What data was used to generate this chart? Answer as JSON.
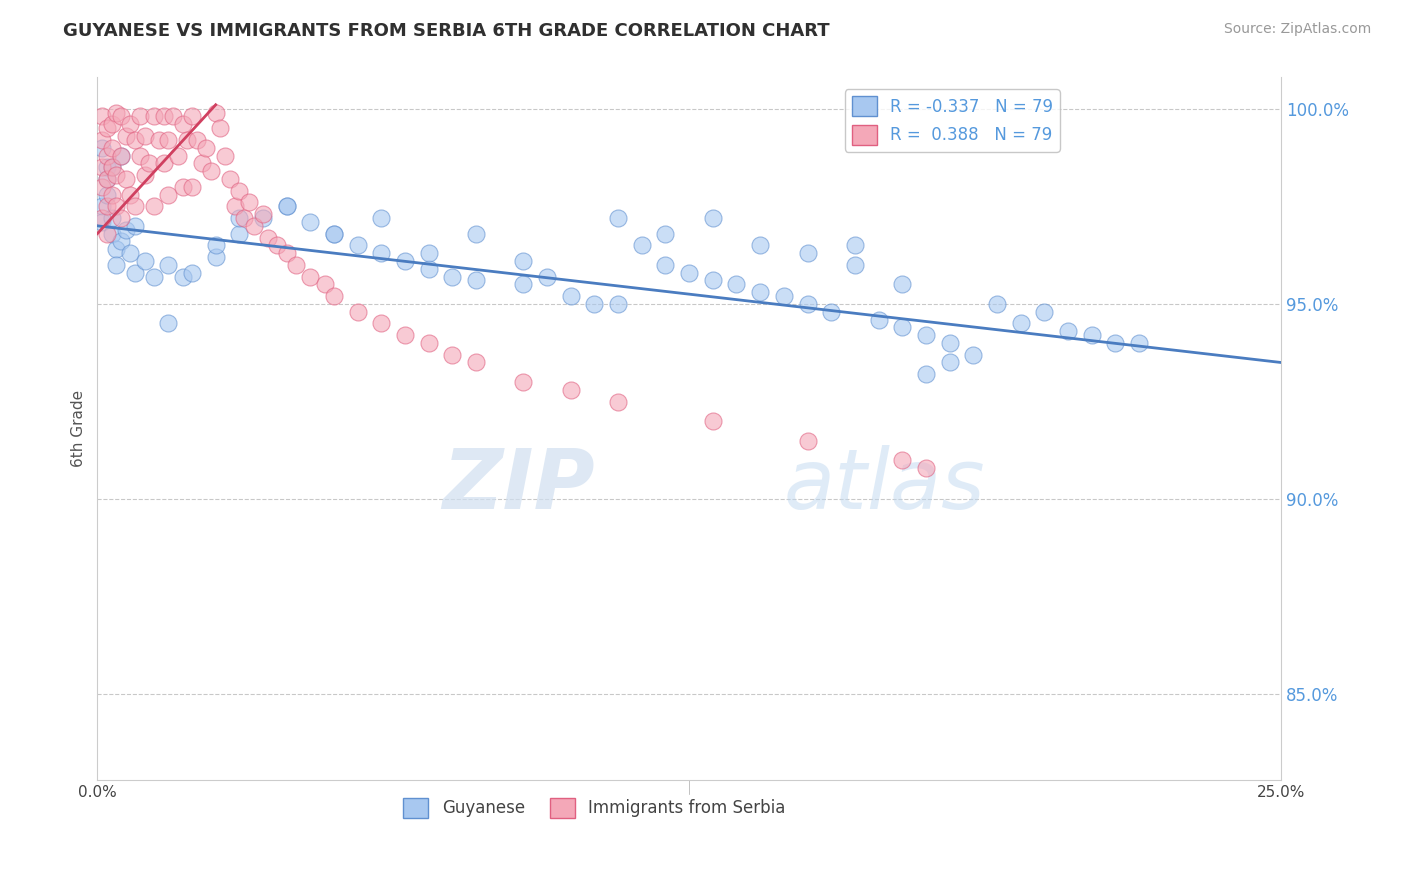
{
  "title": "GUYANESE VS IMMIGRANTS FROM SERBIA 6TH GRADE CORRELATION CHART",
  "source": "Source: ZipAtlas.com",
  "ylabel": "6th Grade",
  "xlim": [
    0.0,
    0.25
  ],
  "ylim": [
    0.828,
    1.008
  ],
  "yticks": [
    0.85,
    0.9,
    0.95,
    1.0
  ],
  "ytick_labels": [
    "85.0%",
    "90.0%",
    "95.0%",
    "100.0%"
  ],
  "R_blue": -0.337,
  "R_pink": 0.388,
  "N_blue": 79,
  "N_pink": 79,
  "blue_color": "#A8C8F0",
  "pink_color": "#F4A8B8",
  "blue_edge_color": "#6090D0",
  "pink_edge_color": "#E06080",
  "blue_line_color": "#4A7CC0",
  "pink_line_color": "#D04060",
  "legend_label_blue": "Guyanese",
  "legend_label_pink": "Immigrants from Serbia",
  "watermark_zip": "ZIP",
  "watermark_atlas": "atlas",
  "background_color": "#FFFFFF",
  "grid_color": "#BBBBBB",
  "title_color": "#303030",
  "ytick_color": "#5599DD",
  "blue_trend_x0": 0.0,
  "blue_trend_x1": 0.25,
  "blue_trend_y0": 0.97,
  "blue_trend_y1": 0.935,
  "pink_trend_x0": 0.0,
  "pink_trend_x1": 0.025,
  "pink_trend_y0": 0.968,
  "pink_trend_y1": 1.001,
  "blue_x": [
    0.001,
    0.002,
    0.001,
    0.003,
    0.002,
    0.004,
    0.001,
    0.003,
    0.005,
    0.002,
    0.006,
    0.004,
    0.008,
    0.003,
    0.007,
    0.01,
    0.005,
    0.012,
    0.015,
    0.008,
    0.018,
    0.02,
    0.025,
    0.03,
    0.015,
    0.035,
    0.04,
    0.025,
    0.045,
    0.05,
    0.03,
    0.055,
    0.06,
    0.04,
    0.065,
    0.05,
    0.07,
    0.06,
    0.075,
    0.07,
    0.08,
    0.08,
    0.09,
    0.09,
    0.1,
    0.095,
    0.105,
    0.11,
    0.115,
    0.12,
    0.11,
    0.125,
    0.13,
    0.12,
    0.135,
    0.14,
    0.13,
    0.145,
    0.15,
    0.14,
    0.155,
    0.16,
    0.15,
    0.165,
    0.17,
    0.16,
    0.175,
    0.18,
    0.17,
    0.19,
    0.2,
    0.21,
    0.18,
    0.215,
    0.22,
    0.195,
    0.205,
    0.185,
    0.175
  ],
  "blue_y": [
    0.975,
    0.978,
    0.971,
    0.968,
    0.982,
    0.964,
    0.99,
    0.972,
    0.966,
    0.985,
    0.969,
    0.96,
    0.958,
    0.985,
    0.963,
    0.961,
    0.988,
    0.957,
    0.96,
    0.97,
    0.957,
    0.958,
    0.962,
    0.968,
    0.945,
    0.972,
    0.975,
    0.965,
    0.971,
    0.968,
    0.972,
    0.965,
    0.963,
    0.975,
    0.961,
    0.968,
    0.959,
    0.972,
    0.957,
    0.963,
    0.956,
    0.968,
    0.955,
    0.961,
    0.952,
    0.957,
    0.95,
    0.95,
    0.965,
    0.96,
    0.972,
    0.958,
    0.956,
    0.968,
    0.955,
    0.953,
    0.972,
    0.952,
    0.95,
    0.965,
    0.948,
    0.965,
    0.963,
    0.946,
    0.944,
    0.96,
    0.942,
    0.94,
    0.955,
    0.95,
    0.948,
    0.942,
    0.935,
    0.94,
    0.94,
    0.945,
    0.943,
    0.937,
    0.932
  ],
  "pink_x": [
    0.001,
    0.001,
    0.001,
    0.001,
    0.001,
    0.002,
    0.002,
    0.002,
    0.002,
    0.002,
    0.003,
    0.003,
    0.003,
    0.003,
    0.004,
    0.004,
    0.004,
    0.005,
    0.005,
    0.005,
    0.006,
    0.006,
    0.007,
    0.007,
    0.008,
    0.008,
    0.009,
    0.009,
    0.01,
    0.01,
    0.011,
    0.012,
    0.012,
    0.013,
    0.014,
    0.014,
    0.015,
    0.015,
    0.016,
    0.017,
    0.018,
    0.018,
    0.019,
    0.02,
    0.02,
    0.021,
    0.022,
    0.023,
    0.024,
    0.025,
    0.026,
    0.027,
    0.028,
    0.029,
    0.03,
    0.031,
    0.032,
    0.033,
    0.035,
    0.036,
    0.038,
    0.04,
    0.042,
    0.045,
    0.048,
    0.05,
    0.055,
    0.06,
    0.065,
    0.07,
    0.075,
    0.08,
    0.09,
    0.1,
    0.11,
    0.13,
    0.15,
    0.17,
    0.175
  ],
  "pink_y": [
    0.985,
    0.992,
    0.998,
    0.972,
    0.98,
    0.988,
    0.995,
    0.975,
    0.982,
    0.968,
    0.99,
    0.978,
    0.985,
    0.996,
    0.983,
    0.999,
    0.975,
    0.988,
    0.998,
    0.972,
    0.993,
    0.982,
    0.996,
    0.978,
    0.992,
    0.975,
    0.988,
    0.998,
    0.983,
    0.993,
    0.986,
    0.998,
    0.975,
    0.992,
    0.986,
    0.998,
    0.992,
    0.978,
    0.998,
    0.988,
    0.996,
    0.98,
    0.992,
    0.998,
    0.98,
    0.992,
    0.986,
    0.99,
    0.984,
    0.999,
    0.995,
    0.988,
    0.982,
    0.975,
    0.979,
    0.972,
    0.976,
    0.97,
    0.973,
    0.967,
    0.965,
    0.963,
    0.96,
    0.957,
    0.955,
    0.952,
    0.948,
    0.945,
    0.942,
    0.94,
    0.937,
    0.935,
    0.93,
    0.928,
    0.925,
    0.92,
    0.915,
    0.91,
    0.908
  ]
}
